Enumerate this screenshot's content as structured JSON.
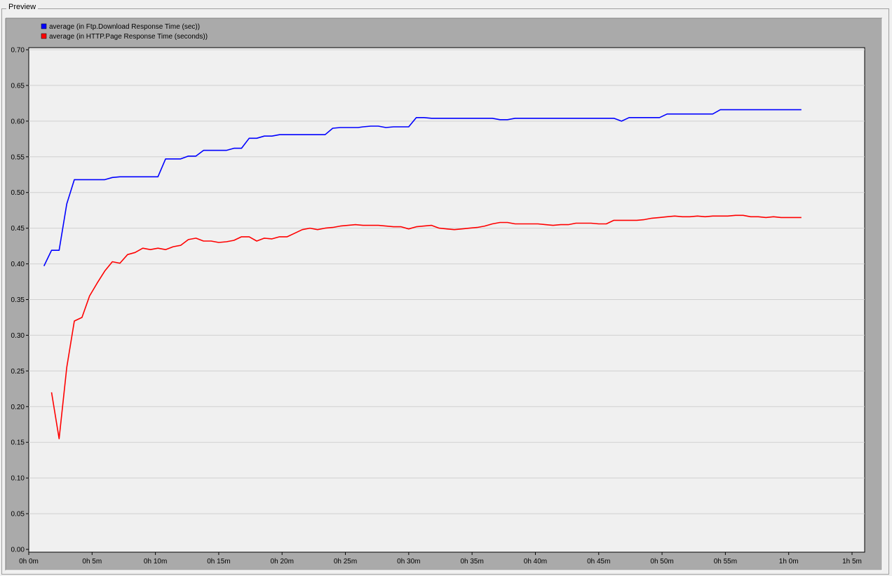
{
  "panel": {
    "title": "Preview"
  },
  "colors": {
    "window_bg": "#f0f0f0",
    "outer_panel": "#aaaaaa",
    "plot_bg": "#f0f0f0",
    "grid": "#d0d0d0",
    "series_ftp": "#0000ff",
    "series_http": "#ff0000"
  },
  "chart_data": {
    "type": "line",
    "title": "",
    "xlabel": "",
    "ylabel": "",
    "ylim": [
      0,
      0.7
    ],
    "yticks": [
      "0.00",
      "0.05",
      "0.10",
      "0.15",
      "0.20",
      "0.25",
      "0.30",
      "0.35",
      "0.40",
      "0.45",
      "0.50",
      "0.55",
      "0.60",
      "0.65",
      "0.70"
    ],
    "xlim_minutes": [
      0,
      65
    ],
    "xticks": [
      "0h 0m",
      "0h 5m",
      "0h 10m",
      "0h 15m",
      "0h 20m",
      "0h 25m",
      "0h 30m",
      "0h 35m",
      "0h 40m",
      "0h 45m",
      "0h 50m",
      "0h 55m",
      "1h 0m",
      "1h 5m"
    ],
    "grid": true,
    "legend_position": "top-left",
    "series": [
      {
        "name": "average (in Ftp.Download Response Time (sec))",
        "color": "#0000ff",
        "x": [
          1.2,
          1.8,
          2.4,
          3.0,
          3.6,
          4.2,
          5.0,
          6.0,
          6.6,
          7.2,
          8.0,
          9.0,
          10.2,
          10.8,
          11.4,
          12.0,
          12.6,
          13.2,
          13.8,
          14.4,
          15.0,
          15.6,
          16.2,
          16.8,
          17.4,
          18.0,
          18.6,
          19.2,
          19.8,
          20.4,
          21.0,
          22.0,
          23.4,
          24.0,
          24.6,
          25.2,
          26.0,
          26.4,
          27.0,
          27.6,
          28.2,
          28.8,
          29.4,
          30.0,
          30.6,
          31.2,
          31.8,
          33.0,
          34.2,
          35.4,
          36.6,
          37.2,
          37.8,
          38.4,
          39.0,
          40.2,
          41.4,
          42.6,
          43.8,
          45.0,
          46.2,
          46.8,
          47.4,
          48.0,
          48.6,
          49.8,
          50.4,
          51.0,
          52.2,
          53.4,
          54.0,
          54.6,
          55.2,
          56.0,
          57.0,
          58.5,
          60.0,
          61.0
        ],
        "y": [
          0.397,
          0.419,
          0.419,
          0.484,
          0.518,
          0.518,
          0.518,
          0.518,
          0.521,
          0.522,
          0.522,
          0.522,
          0.522,
          0.547,
          0.547,
          0.547,
          0.551,
          0.551,
          0.559,
          0.559,
          0.559,
          0.559,
          0.562,
          0.562,
          0.576,
          0.576,
          0.579,
          0.579,
          0.581,
          0.581,
          0.581,
          0.581,
          0.581,
          0.59,
          0.591,
          0.591,
          0.591,
          0.592,
          0.593,
          0.593,
          0.591,
          0.592,
          0.592,
          0.592,
          0.605,
          0.605,
          0.604,
          0.604,
          0.604,
          0.604,
          0.604,
          0.602,
          0.602,
          0.604,
          0.604,
          0.604,
          0.604,
          0.604,
          0.604,
          0.604,
          0.604,
          0.6,
          0.605,
          0.605,
          0.605,
          0.605,
          0.61,
          0.61,
          0.61,
          0.61,
          0.61,
          0.616,
          0.616,
          0.616,
          0.616,
          0.616,
          0.616,
          0.616
        ]
      },
      {
        "name": "average (in HTTP.Page Response Time (seconds))",
        "color": "#ff0000",
        "x": [
          1.8,
          2.4,
          3.0,
          3.6,
          4.2,
          4.8,
          5.4,
          6.0,
          6.6,
          7.2,
          7.8,
          8.4,
          9.0,
          9.6,
          10.2,
          10.8,
          11.4,
          12.0,
          12.6,
          13.2,
          13.8,
          14.4,
          15.0,
          15.6,
          16.2,
          16.8,
          17.4,
          18.0,
          18.6,
          19.2,
          19.8,
          20.4,
          21.0,
          21.6,
          22.2,
          22.8,
          23.4,
          24.0,
          24.6,
          25.2,
          25.8,
          26.4,
          27.0,
          27.6,
          28.2,
          28.8,
          29.4,
          30.0,
          30.6,
          31.2,
          31.8,
          32.4,
          33.0,
          33.6,
          34.2,
          34.8,
          35.4,
          36.0,
          36.6,
          37.2,
          37.8,
          38.4,
          39.0,
          39.6,
          40.2,
          40.8,
          41.4,
          42.0,
          42.6,
          43.2,
          43.8,
          44.4,
          45.0,
          45.6,
          46.2,
          46.8,
          47.4,
          48.0,
          48.6,
          49.2,
          49.8,
          50.4,
          51.0,
          51.6,
          52.2,
          52.8,
          53.4,
          54.0,
          54.6,
          55.2,
          55.8,
          56.4,
          57.0,
          57.6,
          58.2,
          58.8,
          59.4,
          60.0,
          61.0
        ],
        "y": [
          0.22,
          0.155,
          0.255,
          0.32,
          0.325,
          0.355,
          0.373,
          0.39,
          0.403,
          0.401,
          0.413,
          0.416,
          0.422,
          0.42,
          0.422,
          0.42,
          0.424,
          0.426,
          0.434,
          0.436,
          0.432,
          0.432,
          0.43,
          0.431,
          0.433,
          0.438,
          0.438,
          0.432,
          0.436,
          0.435,
          0.438,
          0.438,
          0.443,
          0.448,
          0.45,
          0.448,
          0.45,
          0.451,
          0.453,
          0.454,
          0.455,
          0.454,
          0.454,
          0.454,
          0.453,
          0.452,
          0.452,
          0.449,
          0.452,
          0.453,
          0.454,
          0.45,
          0.449,
          0.448,
          0.449,
          0.45,
          0.451,
          0.453,
          0.456,
          0.458,
          0.458,
          0.456,
          0.456,
          0.456,
          0.456,
          0.455,
          0.454,
          0.455,
          0.455,
          0.457,
          0.457,
          0.457,
          0.456,
          0.456,
          0.461,
          0.461,
          0.461,
          0.461,
          0.462,
          0.464,
          0.465,
          0.466,
          0.467,
          0.466,
          0.466,
          0.467,
          0.466,
          0.467,
          0.467,
          0.467,
          0.468,
          0.468,
          0.466,
          0.466,
          0.465,
          0.466,
          0.465,
          0.465,
          0.465
        ]
      }
    ]
  }
}
